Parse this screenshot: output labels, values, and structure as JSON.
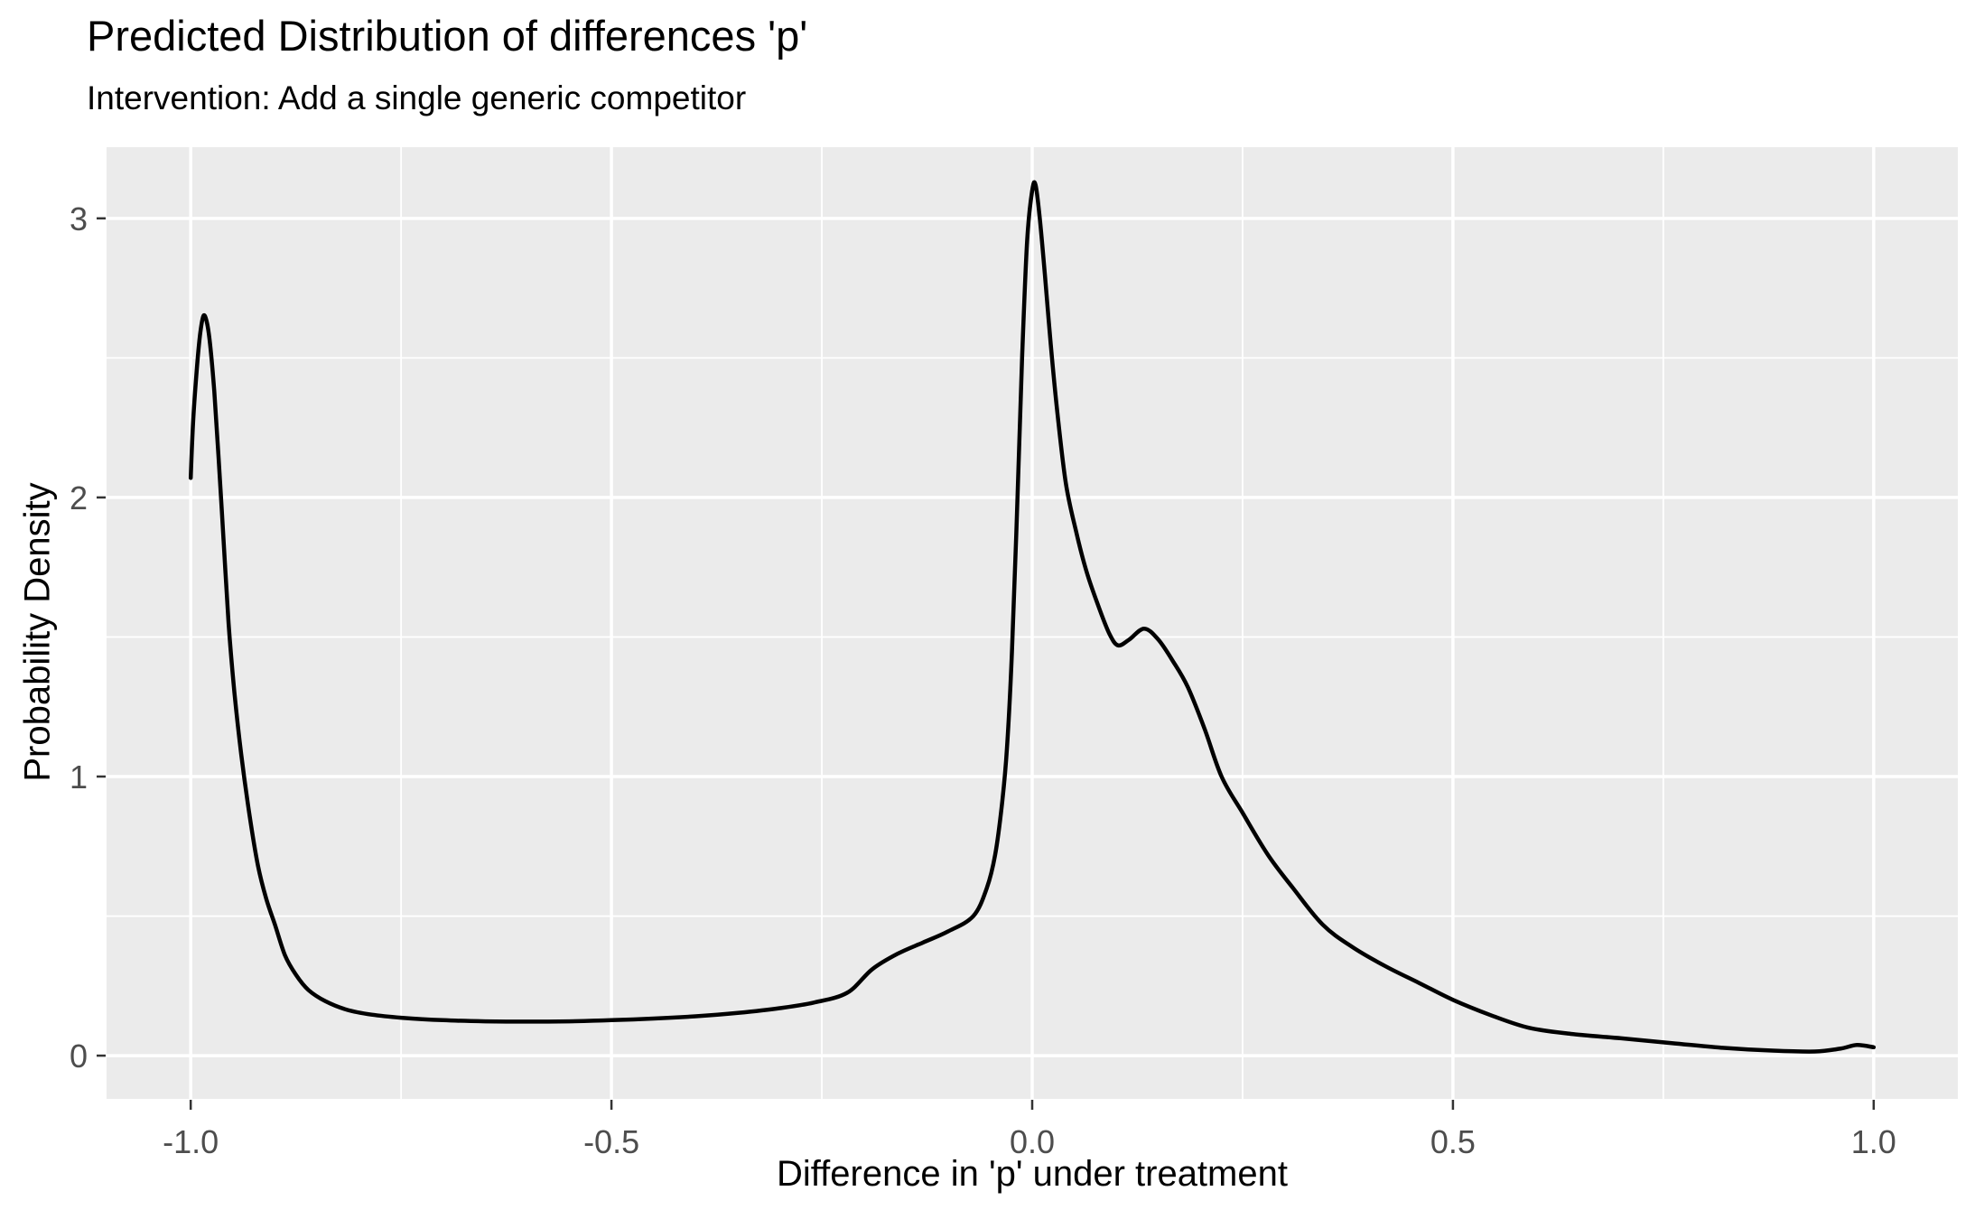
{
  "chart": {
    "title": "Predicted Distribution of differences 'p'",
    "subtitle": "Intervention: Add a single generic competitor",
    "x_axis": {
      "label": "Difference in 'p' under treatment",
      "tick_values": [
        -1.0,
        -0.5,
        0.0,
        0.5,
        1.0
      ],
      "tick_labels": [
        "-1.0",
        "-0.5",
        "0.0",
        "0.5",
        "1.0"
      ],
      "minor_tick_values": [
        -0.75,
        -0.25,
        0.25,
        0.75
      ],
      "range": [
        -1.1,
        1.1
      ]
    },
    "y_axis": {
      "label": "Probability Density",
      "tick_values": [
        0,
        1,
        2,
        3
      ],
      "tick_labels": [
        "0",
        "1",
        "2",
        "3"
      ],
      "minor_tick_values": [
        0.5,
        1.5,
        2.5
      ],
      "range": [
        -0.155,
        3.255
      ]
    },
    "colors": {
      "panel_background": "#EBEBEB",
      "grid_major": "#FFFFFF",
      "grid_minor": "#FFFFFF",
      "curve": "#000000",
      "tick_mark": "#333333",
      "tick_label": "#4D4D4D",
      "text": "#000000"
    }
  },
  "chart_data": {
    "type": "line",
    "title": "Predicted Distribution of differences 'p'",
    "subtitle": "Intervention: Add a single generic competitor",
    "xlabel": "Difference in 'p' under treatment",
    "ylabel": "Probability Density",
    "xlim": [
      -1.1,
      1.1
    ],
    "ylim": [
      -0.155,
      3.255
    ],
    "grid": "on",
    "legend": "none",
    "series": [
      {
        "name": "predicted-density-of-p-difference",
        "points": [
          [
            -1.0,
            2.07
          ],
          [
            -0.997,
            2.28
          ],
          [
            -0.993,
            2.45
          ],
          [
            -0.989,
            2.58
          ],
          [
            -0.985,
            2.65
          ],
          [
            -0.981,
            2.63
          ],
          [
            -0.977,
            2.55
          ],
          [
            -0.972,
            2.38
          ],
          [
            -0.967,
            2.15
          ],
          [
            -0.961,
            1.85
          ],
          [
            -0.955,
            1.55
          ],
          [
            -0.948,
            1.3
          ],
          [
            -0.94,
            1.08
          ],
          [
            -0.93,
            0.86
          ],
          [
            -0.92,
            0.68
          ],
          [
            -0.91,
            0.56
          ],
          [
            -0.9,
            0.47
          ],
          [
            -0.888,
            0.36
          ],
          [
            -0.875,
            0.29
          ],
          [
            -0.86,
            0.235
          ],
          [
            -0.84,
            0.195
          ],
          [
            -0.815,
            0.165
          ],
          [
            -0.785,
            0.147
          ],
          [
            -0.75,
            0.136
          ],
          [
            -0.7,
            0.127
          ],
          [
            -0.65,
            0.123
          ],
          [
            -0.6,
            0.122
          ],
          [
            -0.55,
            0.123
          ],
          [
            -0.5,
            0.127
          ],
          [
            -0.45,
            0.133
          ],
          [
            -0.4,
            0.141
          ],
          [
            -0.35,
            0.153
          ],
          [
            -0.3,
            0.17
          ],
          [
            -0.26,
            0.19
          ],
          [
            -0.22,
            0.225
          ],
          [
            -0.19,
            0.31
          ],
          [
            -0.16,
            0.365
          ],
          [
            -0.13,
            0.405
          ],
          [
            -0.1,
            0.445
          ],
          [
            -0.07,
            0.5
          ],
          [
            -0.054,
            0.6
          ],
          [
            -0.044,
            0.72
          ],
          [
            -0.036,
            0.9
          ],
          [
            -0.03,
            1.1
          ],
          [
            -0.024,
            1.45
          ],
          [
            -0.018,
            1.95
          ],
          [
            -0.012,
            2.5
          ],
          [
            -0.006,
            2.92
          ],
          [
            0.0,
            3.1
          ],
          [
            0.004,
            3.12
          ],
          [
            0.009,
            3.0
          ],
          [
            0.015,
            2.8
          ],
          [
            0.022,
            2.55
          ],
          [
            0.03,
            2.3
          ],
          [
            0.04,
            2.05
          ],
          [
            0.052,
            1.88
          ],
          [
            0.065,
            1.73
          ],
          [
            0.08,
            1.6
          ],
          [
            0.092,
            1.51
          ],
          [
            0.102,
            1.47
          ],
          [
            0.115,
            1.49
          ],
          [
            0.133,
            1.53
          ],
          [
            0.15,
            1.49
          ],
          [
            0.168,
            1.41
          ],
          [
            0.185,
            1.32
          ],
          [
            0.205,
            1.17
          ],
          [
            0.225,
            1.0
          ],
          [
            0.25,
            0.87
          ],
          [
            0.28,
            0.72
          ],
          [
            0.31,
            0.6
          ],
          [
            0.345,
            0.47
          ],
          [
            0.38,
            0.39
          ],
          [
            0.42,
            0.32
          ],
          [
            0.46,
            0.26
          ],
          [
            0.5,
            0.2
          ],
          [
            0.545,
            0.145
          ],
          [
            0.59,
            0.1
          ],
          [
            0.64,
            0.078
          ],
          [
            0.7,
            0.062
          ],
          [
            0.76,
            0.045
          ],
          [
            0.82,
            0.028
          ],
          [
            0.88,
            0.018
          ],
          [
            0.93,
            0.015
          ],
          [
            0.96,
            0.025
          ],
          [
            0.98,
            0.038
          ],
          [
            1.0,
            0.03
          ]
        ]
      }
    ]
  }
}
